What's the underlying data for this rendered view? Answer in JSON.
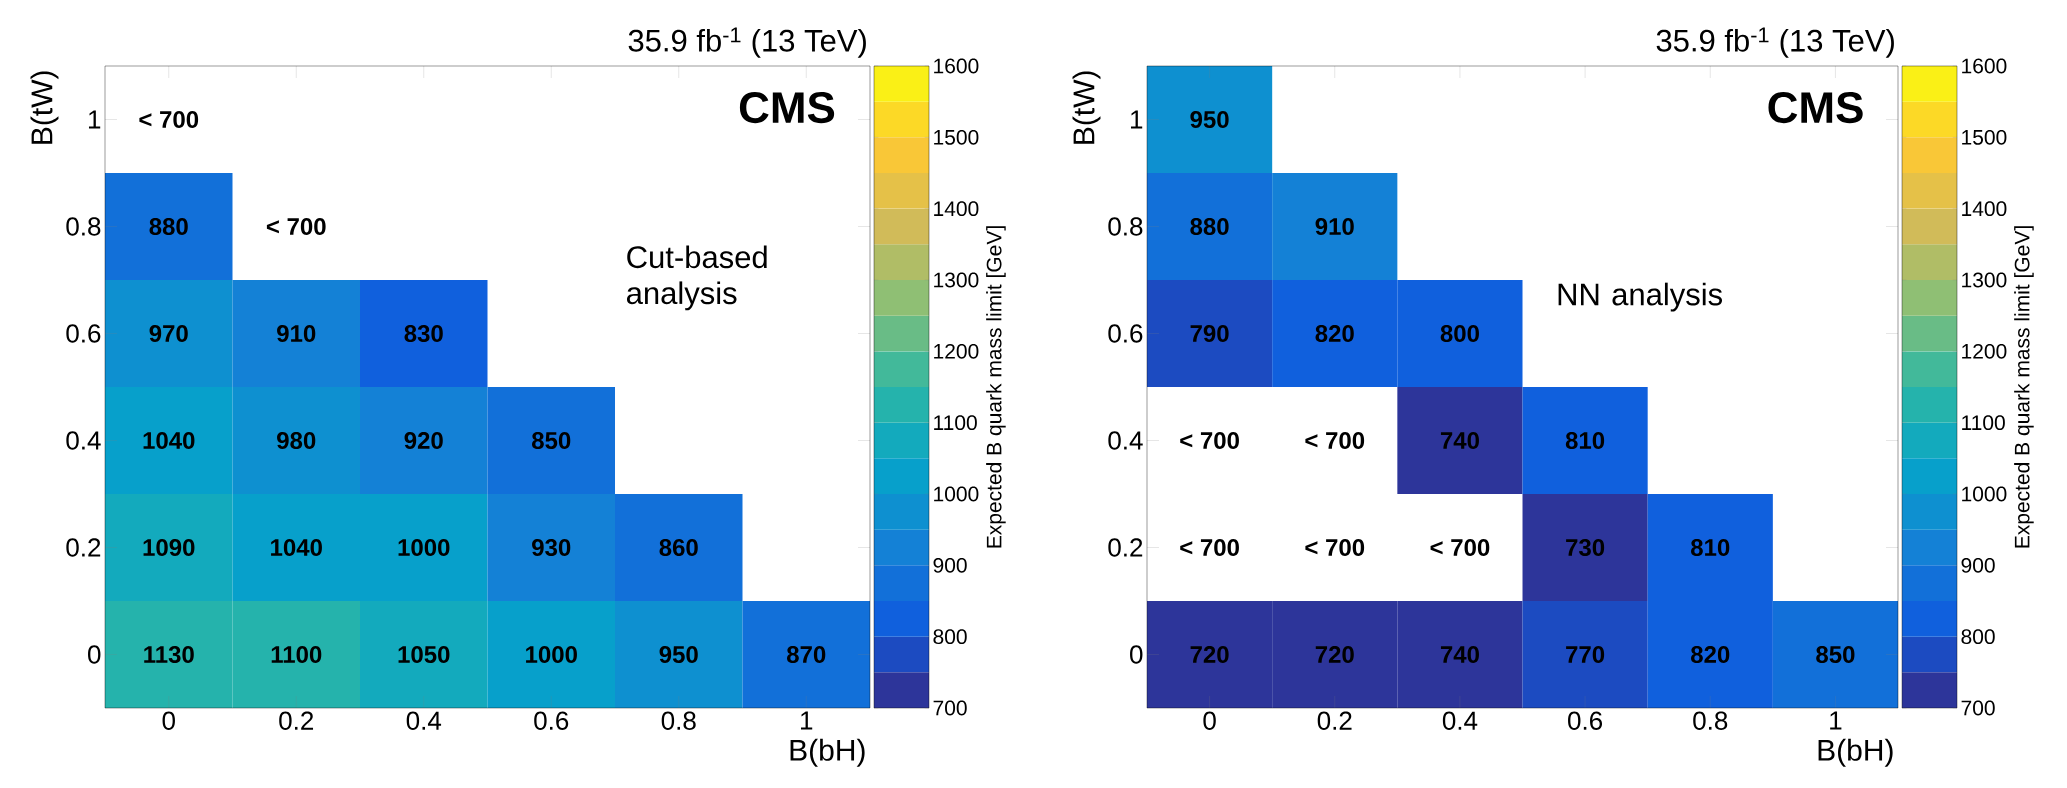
{
  "chart_data": [
    {
      "type": "heatmap",
      "title": "35.9 fb$^{-1}$ (13 TeV)",
      "xlabel": "B(bH)",
      "ylabel": "B(tW)",
      "clabel": "Expected B quark mass limit [GeV]",
      "categories": [
        "0",
        "0.2",
        "0.4",
        "0.6",
        "0.8",
        "1"
      ],
      "y_categories": [
        "1",
        "0.8",
        "0.6",
        "0.4",
        "0.2",
        "0"
      ],
      "cells": [
        [
          null,
          null,
          null,
          null,
          null,
          null
        ],
        [
          880,
          null,
          null,
          null,
          null,
          null
        ],
        [
          970,
          910,
          830,
          null,
          null,
          null
        ],
        [
          1040,
          980,
          920,
          850,
          null,
          null
        ],
        [
          1090,
          1040,
          1000,
          930,
          860,
          null
        ],
        [
          1130,
          1100,
          1050,
          1000,
          950,
          870
        ]
      ],
      "cell_labels": [
        [
          "< 700",
          null,
          null,
          null,
          null,
          null
        ],
        [
          "880",
          "< 700",
          null,
          null,
          null,
          null
        ],
        [
          "970",
          "910",
          "830",
          null,
          null,
          null
        ],
        [
          "1040",
          "980",
          "920",
          "850",
          null,
          null
        ],
        [
          "1090",
          "1040",
          "1000",
          "930",
          "860",
          null
        ],
        [
          "1130",
          "1100",
          "1050",
          "1000",
          "950",
          "870"
        ]
      ],
      "clim": [
        700,
        1600
      ],
      "cticks": [
        700,
        800,
        900,
        1000,
        1100,
        1200,
        1300,
        1400,
        1500,
        1600
      ],
      "annotations": [
        "CMS",
        "Cut-based analysis"
      ]
    },
    {
      "type": "heatmap",
      "title": "35.9 fb$^{-1}$ (13 TeV)",
      "xlabel": "B(bH)",
      "ylabel": "B(tW)",
      "clabel": "Expected B quark mass limit [GeV]",
      "categories": [
        "0",
        "0.2",
        "0.4",
        "0.6",
        "0.8",
        "1"
      ],
      "y_categories": [
        "1",
        "0.8",
        "0.6",
        "0.4",
        "0.2",
        "0"
      ],
      "cells": [
        [
          950,
          null,
          null,
          null,
          null,
          null
        ],
        [
          880,
          910,
          null,
          null,
          null,
          null
        ],
        [
          790,
          820,
          800,
          null,
          null,
          null
        ],
        [
          null,
          null,
          740,
          810,
          null,
          null
        ],
        [
          null,
          null,
          null,
          730,
          810,
          null
        ],
        [
          720,
          720,
          740,
          770,
          820,
          850
        ]
      ],
      "cell_labels": [
        [
          "950",
          null,
          null,
          null,
          null,
          null
        ],
        [
          "880",
          "910",
          null,
          null,
          null,
          null
        ],
        [
          "790",
          "820",
          "800",
          null,
          null,
          null
        ],
        [
          "< 700",
          "< 700",
          "740",
          "810",
          null,
          null
        ],
        [
          "< 700",
          "< 700",
          "< 700",
          "730",
          "810",
          null
        ],
        [
          "720",
          "720",
          "740",
          "770",
          "820",
          "850"
        ]
      ],
      "clim": [
        700,
        1600
      ],
      "cticks": [
        700,
        800,
        900,
        1000,
        1100,
        1200,
        1300,
        1400,
        1500,
        1600
      ],
      "annotations": [
        "CMS",
        "NN analysis"
      ]
    }
  ]
}
